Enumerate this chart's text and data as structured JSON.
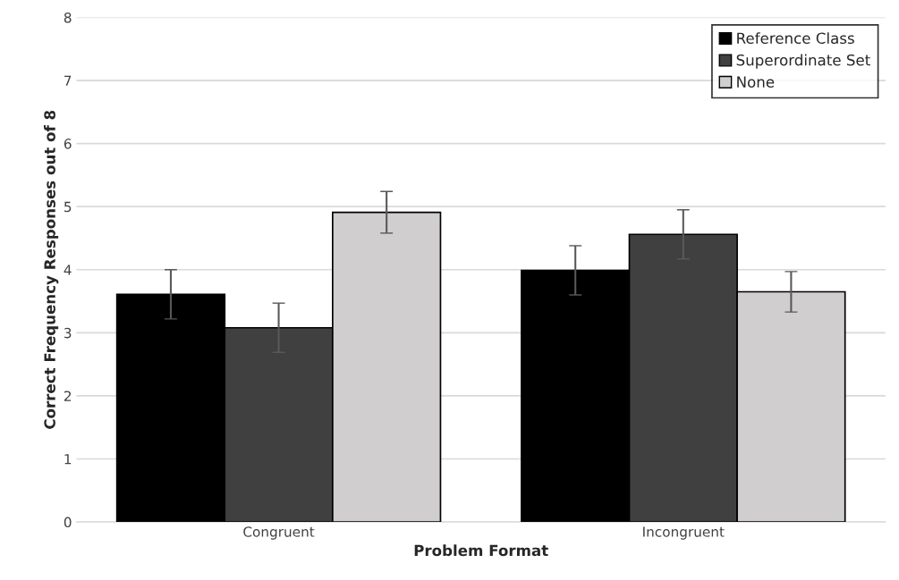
{
  "chart_data": {
    "type": "bar",
    "xlabel": "Problem Format",
    "ylabel": "Correct Frequency Responses out of 8",
    "categories": [
      "Congruent",
      "Incongruent"
    ],
    "series": [
      {
        "name": "Reference Class",
        "color": "#000000",
        "values": [
          3.61,
          3.99
        ],
        "errors": [
          0.39,
          0.39
        ]
      },
      {
        "name": "Superordinate Set",
        "color": "#404040",
        "values": [
          3.08,
          4.56
        ],
        "errors": [
          0.39,
          0.39
        ]
      },
      {
        "name": "None",
        "color": "#d0cece",
        "values": [
          4.91,
          3.65
        ],
        "errors": [
          0.33,
          0.32
        ]
      }
    ],
    "ylim": [
      0,
      8
    ],
    "yticks": [
      0,
      1,
      2,
      3,
      4,
      5,
      6,
      7,
      8
    ],
    "grid": "y",
    "legend": "top right"
  }
}
